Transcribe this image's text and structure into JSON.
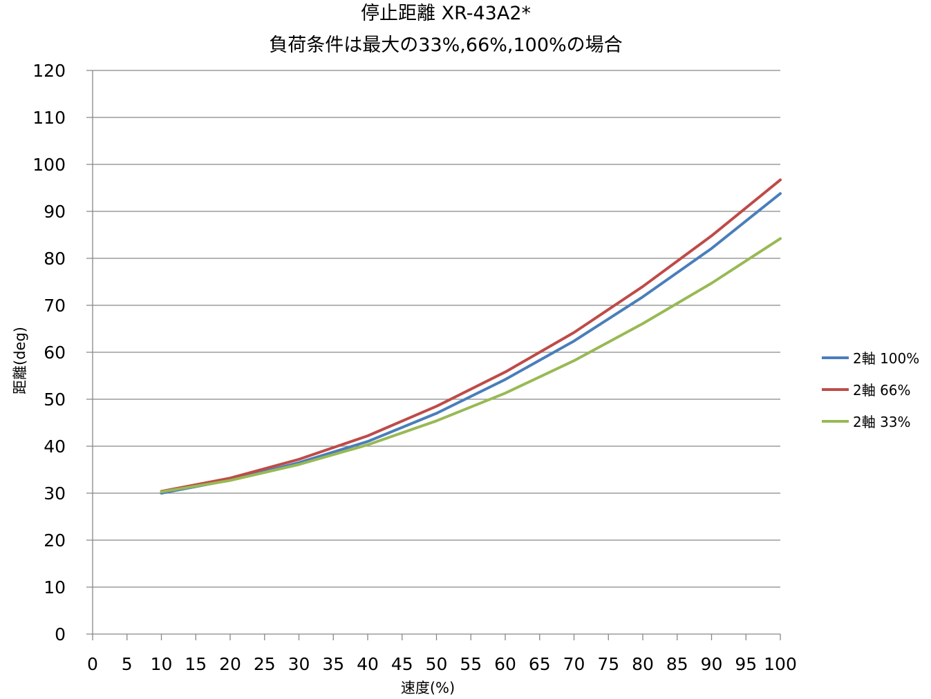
{
  "chart_data": {
    "type": "line",
    "title": "停止距離 XR-43A2*",
    "subtitle": "負荷条件は最大の33%,66%,100%の場合",
    "xlabel": "速度(%)",
    "ylabel": "距離(deg)",
    "xlim": [
      0,
      100
    ],
    "ylim": [
      0,
      120
    ],
    "x_ticks": [
      "0",
      "5",
      "10",
      "15",
      "20",
      "25",
      "30",
      "35",
      "40",
      "45",
      "50",
      "55",
      "60",
      "65",
      "70",
      "75",
      "80",
      "85",
      "90",
      "95",
      "100"
    ],
    "y_ticks": [
      "0",
      "10",
      "20",
      "30",
      "40",
      "50",
      "60",
      "70",
      "80",
      "90",
      "100",
      "110",
      "120"
    ],
    "grid": "horizontal",
    "legend_position": "right",
    "x": [
      10,
      20,
      30,
      40,
      50,
      60,
      70,
      80,
      90,
      100
    ],
    "series": [
      {
        "name": "2軸 100%",
        "color": "#4a7ebb",
        "values": [
          30.0,
          32.8,
          36.5,
          41.0,
          47.0,
          54.2,
          62.4,
          71.8,
          82.1,
          93.8
        ]
      },
      {
        "name": "2軸 66%",
        "color": "#be4b48",
        "values": [
          30.4,
          33.2,
          37.2,
          42.2,
          48.5,
          55.8,
          64.2,
          74.0,
          84.8,
          96.7
        ]
      },
      {
        "name": "2軸 33%",
        "color": "#98b954",
        "values": [
          30.3,
          32.7,
          36.1,
          40.3,
          45.4,
          51.3,
          58.2,
          66.1,
          74.7,
          84.2
        ]
      }
    ]
  }
}
